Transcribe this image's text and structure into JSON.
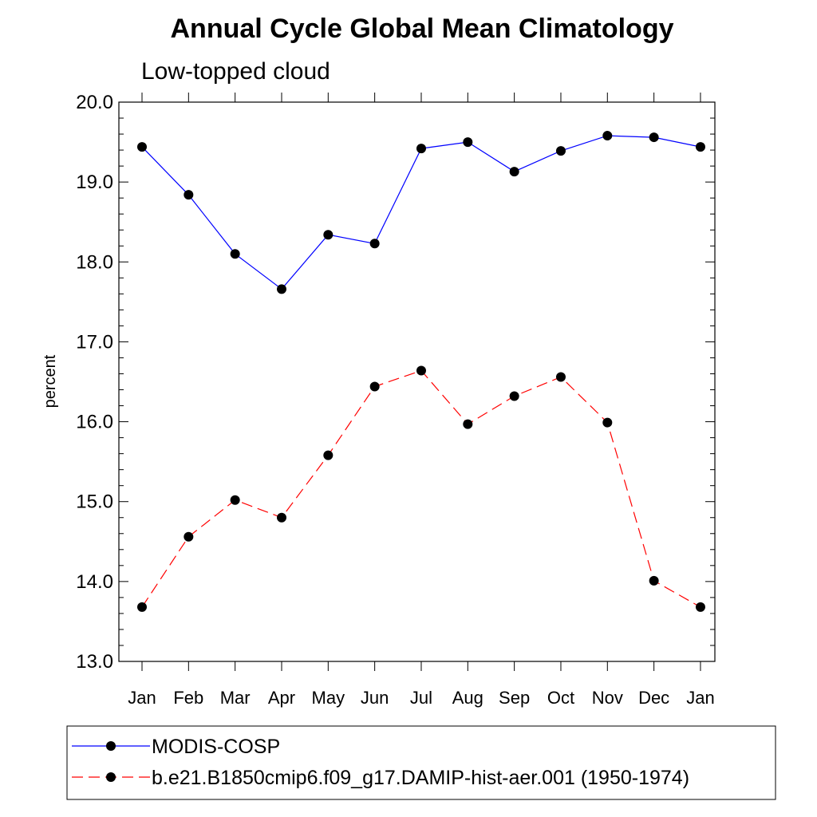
{
  "chart_data": {
    "type": "line",
    "title": "Annual Cycle Global Mean Climatology",
    "subtitle": "Low-topped cloud",
    "xlabel": "",
    "ylabel": "percent",
    "categories": [
      "Jan",
      "Feb",
      "Mar",
      "Apr",
      "May",
      "Jun",
      "Jul",
      "Aug",
      "Sep",
      "Oct",
      "Nov",
      "Dec",
      "Jan"
    ],
    "ylim": [
      13.0,
      20.0
    ],
    "yticks": [
      "13.0",
      "14.0",
      "15.0",
      "16.0",
      "17.0",
      "18.0",
      "19.0",
      "20.0"
    ],
    "grid": false,
    "legend_position": "bottom",
    "series": [
      {
        "name": "MODIS-COSP",
        "color": "#0000ff",
        "dash": "solid",
        "values": [
          19.44,
          18.84,
          18.1,
          17.66,
          18.34,
          18.23,
          19.42,
          19.5,
          19.13,
          19.39,
          19.58,
          19.56,
          19.44
        ]
      },
      {
        "name": "b.e21.B1850cmip6.f09_g17.DAMIP-hist-aer.001 (1950-1974)",
        "color": "#ff0000",
        "dash": "dashed",
        "values": [
          13.68,
          14.56,
          15.02,
          14.8,
          15.58,
          16.44,
          16.64,
          15.97,
          16.32,
          16.56,
          15.99,
          14.01,
          13.68
        ]
      }
    ]
  }
}
